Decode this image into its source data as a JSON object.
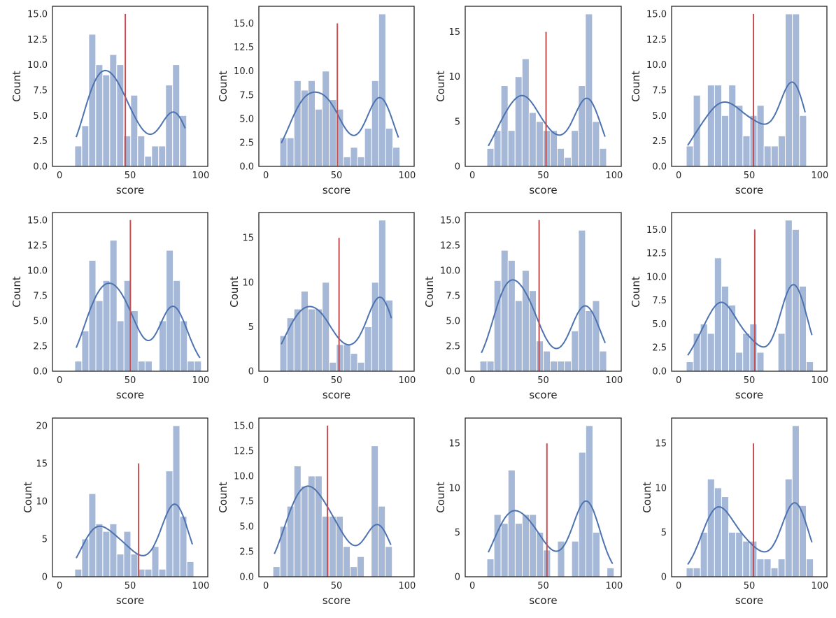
{
  "chart_data": [
    {
      "type": "bar",
      "xlabel": "score",
      "ylabel": "Count",
      "xlim": [
        -5,
        105
      ],
      "ylim": [
        0,
        15.75
      ],
      "xticks": [
        "0",
        "50",
        "100"
      ],
      "yticks": [
        "0.0",
        "2.5",
        "5.0",
        "7.5",
        "10.0",
        "12.5",
        "15.0"
      ],
      "bins": {
        "start": 10.8,
        "width": 4.95
      },
      "counts": [
        2,
        4,
        13,
        10,
        9,
        11,
        10,
        3,
        7,
        3,
        1,
        2,
        2,
        8,
        10,
        5
      ],
      "mean_line": {
        "x": 46.6,
        "top": 15
      },
      "kde": true
    },
    {
      "type": "bar",
      "xlabel": "score",
      "ylabel": "Count",
      "xlim": [
        -5,
        105
      ],
      "ylim": [
        0,
        16.8
      ],
      "xticks": [
        "0",
        "50",
        "100"
      ],
      "yticks": [
        "0.0",
        "2.5",
        "5.0",
        "7.5",
        "10.0",
        "12.5",
        "15.0"
      ],
      "bins": {
        "start": 9.9,
        "width": 5.0
      },
      "counts": [
        3,
        3,
        9,
        8,
        9,
        6,
        10,
        7,
        6,
        1,
        2,
        1,
        4,
        9,
        16,
        4,
        2
      ],
      "mean_line": {
        "x": 50.6,
        "top": 15
      },
      "kde": true
    },
    {
      "type": "bar",
      "xlabel": "score",
      "ylabel": "Count",
      "xlim": [
        -5,
        105
      ],
      "ylim": [
        0,
        17.85
      ],
      "xticks": [
        "0",
        "50",
        "100"
      ],
      "yticks": [
        "0",
        "5",
        "10",
        "15"
      ],
      "bins": {
        "start": 10.3,
        "width": 4.96
      },
      "counts": [
        2,
        4,
        9,
        4,
        10,
        12,
        6,
        5,
        4,
        4,
        2,
        1,
        4,
        9,
        17,
        5,
        2
      ],
      "mean_line": {
        "x": 52.0,
        "top": 15
      },
      "kde": true
    },
    {
      "type": "bar",
      "xlabel": "score",
      "ylabel": "Count",
      "xlim": [
        -5,
        105
      ],
      "ylim": [
        0,
        15.75
      ],
      "xticks": [
        "0",
        "50",
        "100"
      ],
      "yticks": [
        "0.0",
        "2.5",
        "5.0",
        "7.5",
        "10.0",
        "12.5",
        "15.0"
      ],
      "bins": {
        "start": 5.4,
        "width": 5.01
      },
      "counts": [
        2,
        7,
        0,
        8,
        8,
        5,
        8,
        6,
        3,
        5,
        6,
        2,
        2,
        3,
        15,
        15,
        5
      ],
      "mean_line": {
        "x": 53.0,
        "top": 15
      },
      "kde": true
    },
    {
      "type": "bar",
      "xlabel": "score",
      "ylabel": "Count",
      "xlim": [
        -5,
        105
      ],
      "ylim": [
        0,
        15.75
      ],
      "xticks": [
        "0",
        "50",
        "100"
      ],
      "yticks": [
        "0.0",
        "2.5",
        "5.0",
        "7.5",
        "10.0",
        "12.5",
        "15.0"
      ],
      "bins": {
        "start": 10.8,
        "width": 4.98
      },
      "counts": [
        1,
        4,
        11,
        7,
        9,
        13,
        5,
        9,
        6,
        1,
        1,
        0,
        5,
        12,
        9,
        5,
        1,
        1
      ],
      "mean_line": {
        "x": 50.2,
        "top": 15
      },
      "kde": true
    },
    {
      "type": "bar",
      "xlabel": "score",
      "ylabel": "Count",
      "xlim": [
        -5,
        105
      ],
      "ylim": [
        0,
        17.85
      ],
      "xticks": [
        "0",
        "50",
        "100"
      ],
      "yticks": [
        "0",
        "5",
        "10",
        "15"
      ],
      "bins": {
        "start": 9.9,
        "width": 5.0
      },
      "counts": [
        4,
        6,
        7,
        9,
        7,
        7,
        10,
        1,
        3,
        3,
        2,
        1,
        5,
        10,
        17,
        8
      ],
      "mean_line": {
        "x": 51.8,
        "top": 15
      },
      "kde": true
    },
    {
      "type": "bar",
      "xlabel": "score",
      "ylabel": "Count",
      "xlim": [
        -5,
        105
      ],
      "ylim": [
        0,
        15.75
      ],
      "xticks": [
        "0",
        "50",
        "100"
      ],
      "yticks": [
        "0.0",
        "2.5",
        "5.0",
        "7.5",
        "10.0",
        "12.5",
        "15.0"
      ],
      "bins": {
        "start": 5.4,
        "width": 4.96
      },
      "counts": [
        1,
        1,
        9,
        12,
        11,
        7,
        10,
        8,
        3,
        2,
        1,
        1,
        1,
        4,
        14,
        6,
        7,
        2
      ],
      "mean_line": {
        "x": 47.1,
        "top": 15
      },
      "kde": true
    },
    {
      "type": "bar",
      "xlabel": "score",
      "ylabel": "Count",
      "xlim": [
        -5,
        105
      ],
      "ylim": [
        0,
        16.8
      ],
      "xticks": [
        "0",
        "50",
        "100"
      ],
      "yticks": [
        "0.0",
        "2.5",
        "5.0",
        "7.5",
        "10.0",
        "12.5",
        "15.0"
      ],
      "bins": {
        "start": 5.4,
        "width": 5.0
      },
      "counts": [
        1,
        4,
        5,
        4,
        12,
        9,
        7,
        2,
        4,
        5,
        2,
        0,
        0,
        4,
        16,
        15,
        9,
        1
      ],
      "mean_line": {
        "x": 53.9,
        "top": 15
      },
      "kde": true
    },
    {
      "type": "bar",
      "xlabel": "score",
      "ylabel": "Count",
      "xlim": [
        -5,
        105
      ],
      "ylim": [
        0,
        21
      ],
      "xticks": [
        "0",
        "50",
        "100"
      ],
      "yticks": [
        "0",
        "5",
        "10",
        "15",
        "20"
      ],
      "bins": {
        "start": 10.8,
        "width": 4.96
      },
      "counts": [
        1,
        5,
        11,
        7,
        6,
        7,
        3,
        6,
        3,
        1,
        1,
        4,
        1,
        14,
        20,
        8,
        2
      ],
      "mean_line": {
        "x": 56.0,
        "top": 15
      },
      "kde": true
    },
    {
      "type": "bar",
      "xlabel": "score",
      "ylabel": "Count",
      "xlim": [
        -5,
        105
      ],
      "ylim": [
        0,
        15.75
      ],
      "xticks": [
        "0",
        "50",
        "100"
      ],
      "yticks": [
        "0.0",
        "2.5",
        "5.0",
        "7.5",
        "10.0",
        "12.5",
        "15.0"
      ],
      "bins": {
        "start": 5.0,
        "width": 4.97
      },
      "counts": [
        1,
        5,
        7,
        11,
        9,
        10,
        10,
        6,
        6,
        6,
        3,
        1,
        2,
        0,
        13,
        7,
        3
      ],
      "mean_line": {
        "x": 43.6,
        "top": 15
      },
      "kde": true
    },
    {
      "type": "bar",
      "xlabel": "score",
      "ylabel": "Count",
      "xlim": [
        -5,
        105
      ],
      "ylim": [
        0,
        17.85
      ],
      "xticks": [
        "0",
        "50",
        "100"
      ],
      "yticks": [
        "0",
        "5",
        "10",
        "15"
      ],
      "bins": {
        "start": 10.3,
        "width": 4.98
      },
      "counts": [
        2,
        7,
        6,
        12,
        6,
        7,
        7,
        5,
        3,
        0,
        4,
        0,
        4,
        14,
        17,
        5,
        0,
        1
      ],
      "mean_line": {
        "x": 52.6,
        "top": 15
      },
      "kde": true
    },
    {
      "type": "bar",
      "xlabel": "score",
      "ylabel": "Count",
      "xlim": [
        -5,
        105
      ],
      "ylim": [
        0,
        17.85
      ],
      "xticks": [
        "0",
        "50",
        "100"
      ],
      "yticks": [
        "0",
        "5",
        "10",
        "15"
      ],
      "bins": {
        "start": 5.4,
        "width": 5.0
      },
      "counts": [
        1,
        1,
        5,
        11,
        10,
        9,
        5,
        5,
        4,
        4,
        2,
        2,
        1,
        2,
        11,
        17,
        8,
        2
      ],
      "mean_line": {
        "x": 53.0,
        "top": 15
      },
      "kde": true
    }
  ],
  "colors": {
    "bar": "#a5b8d7",
    "bar_edge": "#ffffff",
    "kde": "#4c72b0",
    "mean_line": "#c44e52",
    "axes": "#262626"
  }
}
